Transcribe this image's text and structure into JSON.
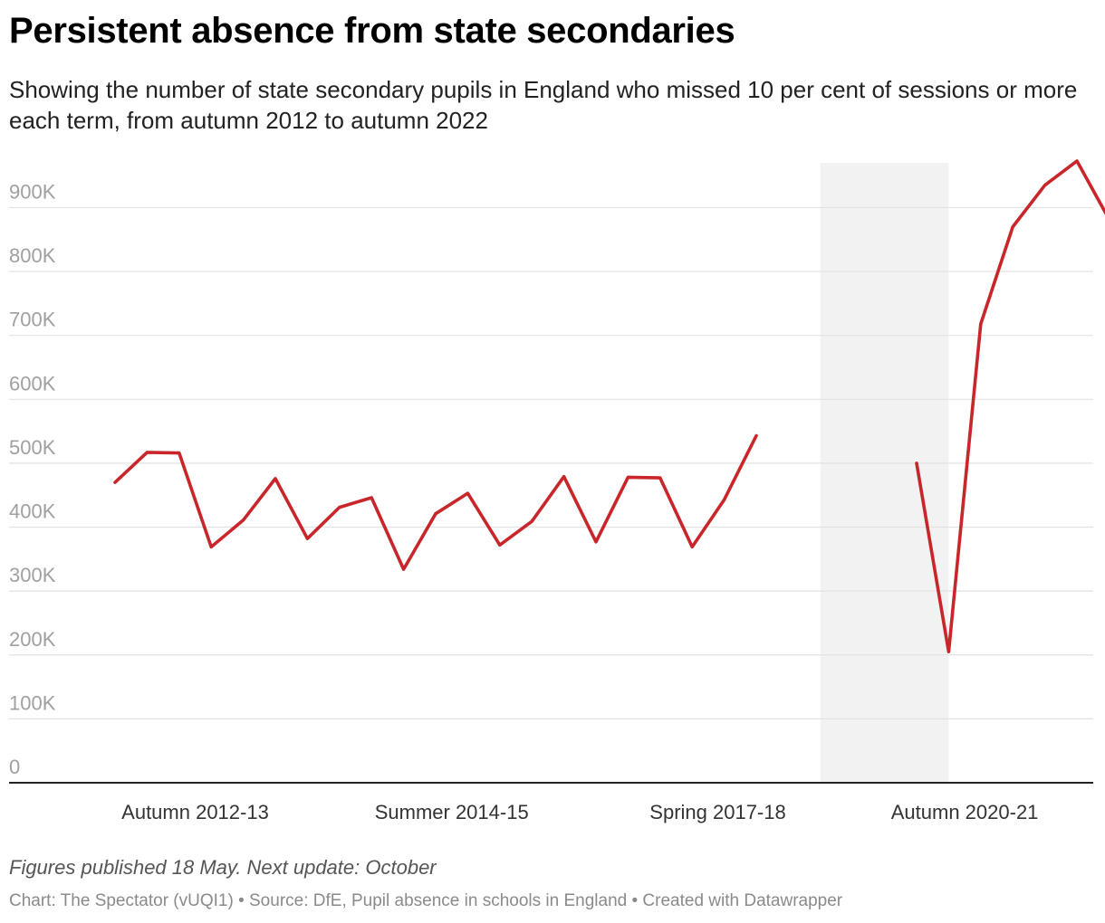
{
  "title": "Persistent absence from state secondaries",
  "subtitle": "Showing the number of state secondary pupils in England who missed 10 per cent of sessions or more each term, from autumn 2012 to autumn 2022",
  "notes": "Figures published 18 May. Next update: October",
  "byline": "Chart: The Spectator (vUQI1) • Source: DfE, Pupil absence in schools in England • Created with Datawrapper",
  "colors": {
    "line": "#c8262a",
    "shade": "#f2f2f2",
    "grid": "#e2e2e2",
    "axis": "#222222"
  },
  "chart_data": {
    "type": "line",
    "grid": true,
    "ylim": [
      0,
      970000
    ],
    "y_ticks": [
      0,
      100000,
      200000,
      300000,
      400000,
      500000,
      600000,
      700000,
      800000,
      900000
    ],
    "y_tick_labels": [
      "0",
      "100K",
      "200K",
      "300K",
      "400K",
      "500K",
      "600K",
      "700K",
      "800K",
      "900K"
    ],
    "x_tick_labels": [
      {
        "index": 2.5,
        "label": "Autumn 2012-13"
      },
      {
        "index": 10.5,
        "label": "Summer 2014-15"
      },
      {
        "index": 18.8,
        "label": "Spring 2017-18"
      },
      {
        "index": 26.5,
        "label": "Autumn 2020-21"
      }
    ],
    "shaded_range": [
      22.0,
      26.0
    ],
    "series": [
      {
        "values": [
          470000,
          517000,
          516000,
          369000,
          411000,
          476000,
          382000,
          431000,
          446000,
          334000,
          421000,
          453000,
          372000,
          409000,
          479000,
          377000,
          478000,
          477000,
          369000,
          443000,
          543000,
          null,
          null,
          null,
          null,
          500000,
          205000,
          718000,
          870000,
          935000,
          973000,
          882000
        ]
      }
    ]
  }
}
